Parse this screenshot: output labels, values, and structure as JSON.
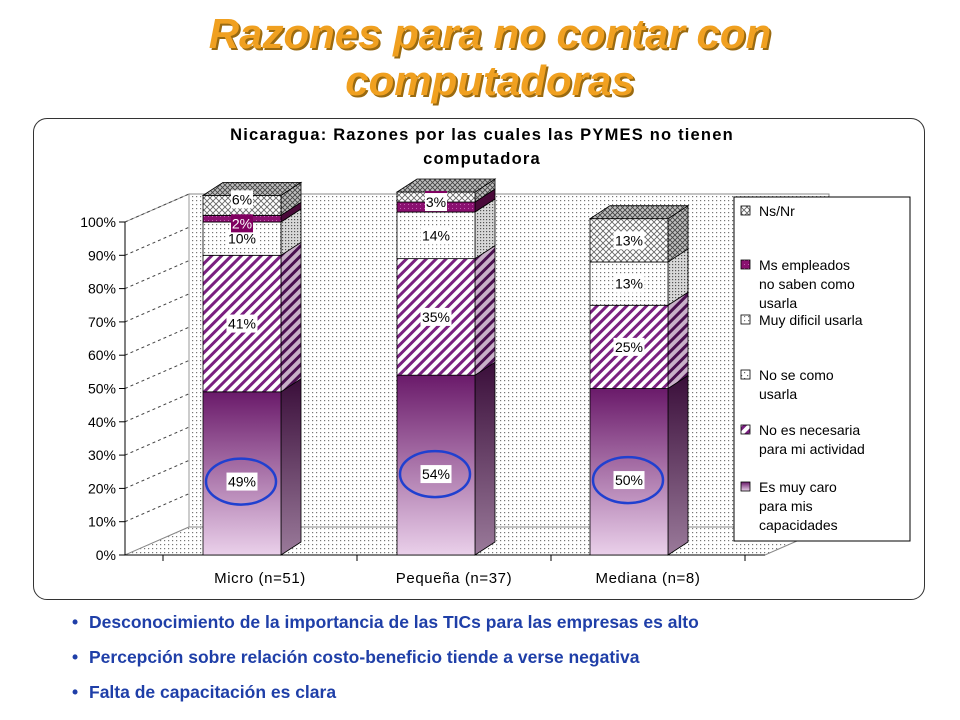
{
  "slide": {
    "title_line1": "Razones para no contar con",
    "title_line2": "computadoras",
    "bullets": [
      "Desconocimiento de la importancia de las TICs para las empresas es alto",
      "Percepción sobre relación costo-beneficio tiende a verse negativa",
      "Falta de capacitación es clara"
    ]
  },
  "chart_data": {
    "type": "bar",
    "stacked": "percent",
    "title_line1": "Nicaragua: Razones por las cuales las PYMES no tienen",
    "title_line2": "computadora",
    "categories": [
      "Micro (n=51)",
      "Pequeña (n=37)",
      "Mediana (n=8)"
    ],
    "series": [
      {
        "name": "Es muy caro para mis capacidades",
        "values": [
          49,
          54,
          50
        ],
        "labels": [
          "49%",
          "54%",
          "50%"
        ]
      },
      {
        "name": "No es necesaria para mi actividad",
        "values": [
          41,
          35,
          25
        ],
        "labels": [
          "41%",
          "35%",
          "25%"
        ]
      },
      {
        "name": "No se como usarla",
        "values": [
          0,
          0,
          0
        ],
        "labels": [
          "",
          "",
          ""
        ]
      },
      {
        "name": "Muy dificil usarla",
        "values": [
          10,
          14,
          13
        ],
        "labels": [
          "10%",
          "14%",
          "13%"
        ]
      },
      {
        "name": "Ms empleados no saben como usarla",
        "values": [
          2,
          3,
          0
        ],
        "labels": [
          "2%",
          "3%",
          ""
        ]
      },
      {
        "name": "Ns/Nr",
        "values": [
          6,
          3,
          13
        ],
        "labels": [
          "6%",
          "3%",
          "13%"
        ]
      }
    ],
    "legend_lines": [
      [
        "Ns/Nr"
      ],
      [
        "Ms empleados",
        "no saben como",
        "usarla"
      ],
      [
        "Muy dificil usarla"
      ],
      [
        "No se como",
        "usarla"
      ],
      [
        "No es necesaria",
        "para mi actividad"
      ],
      [
        "Es muy caro",
        "para mis",
        "capacidades"
      ]
    ],
    "y_ticks": [
      "0%",
      "10%",
      "20%",
      "30%",
      "40%",
      "50%",
      "60%",
      "70%",
      "80%",
      "90%",
      "100%"
    ],
    "ylim": [
      0,
      100
    ],
    "legend_position": "right",
    "grid": true,
    "annotations": "circles around 49%, 54%, 50%",
    "colors": {
      "purple_dark": "#6a1a6a",
      "purple_light": "#e6c6e6",
      "hatch": "#7a2080",
      "employees": "#800060",
      "circle": "#2040d0",
      "title": "#f0a020",
      "bullet_text": "#1f3fa8"
    }
  }
}
